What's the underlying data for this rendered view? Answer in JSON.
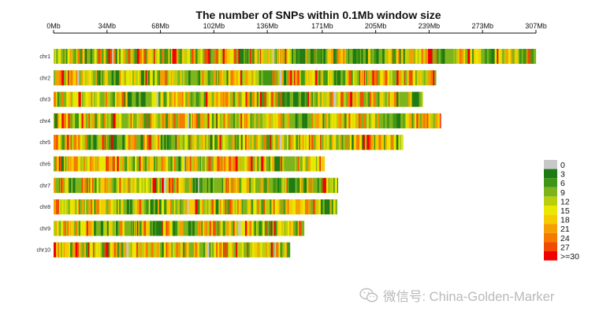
{
  "chart_data": {
    "type": "heatmap",
    "title": "The number of SNPs within 0.1Mb window size",
    "x_axis": {
      "range": [
        0,
        307
      ],
      "unit": "Mb",
      "tick_values": [
        0,
        34,
        68,
        102,
        136,
        171,
        205,
        239,
        273,
        307
      ],
      "tick_labels": [
        "0Mb",
        "34Mb",
        "68Mb",
        "102Mb",
        "136Mb",
        "171Mb",
        "205Mb",
        "239Mb",
        "273Mb",
        "307Mb"
      ],
      "position": "top"
    },
    "window_size_mb": 0.1,
    "chromosomes": [
      {
        "name": "chr1",
        "length_mb": 307
      },
      {
        "name": "chr2",
        "length_mb": 243.5
      },
      {
        "name": "chr3",
        "length_mb": 235
      },
      {
        "name": "chr4",
        "length_mb": 246.5
      },
      {
        "name": "chr5",
        "length_mb": 222.5
      },
      {
        "name": "chr6",
        "length_mb": 172.5
      },
      {
        "name": "chr7",
        "length_mb": 181
      },
      {
        "name": "chr8",
        "length_mb": 180.5
      },
      {
        "name": "chr9",
        "length_mb": 159.5
      },
      {
        "name": "chr10",
        "length_mb": 150.5
      }
    ],
    "legend": {
      "position": "right",
      "entries": [
        {
          "label": "0",
          "color": "#c8c8c8"
        },
        {
          "label": "3",
          "color": "#1e7a14"
        },
        {
          "label": "6",
          "color": "#3f9616"
        },
        {
          "label": "9",
          "color": "#7db41c"
        },
        {
          "label": "12",
          "color": "#b9cf0e"
        },
        {
          "label": "15",
          "color": "#e8e800"
        },
        {
          "label": "18",
          "color": "#f6cc00"
        },
        {
          "label": "21",
          "color": "#f5a000"
        },
        {
          "label": "24",
          "color": "#f57a00"
        },
        {
          "label": "27",
          "color": "#f04b00"
        },
        {
          "label": ">=30",
          "color": "#f00000"
        }
      ]
    }
  },
  "watermark": {
    "icon": "wechat-icon",
    "text": "微信号: China-Golden-Marker"
  }
}
